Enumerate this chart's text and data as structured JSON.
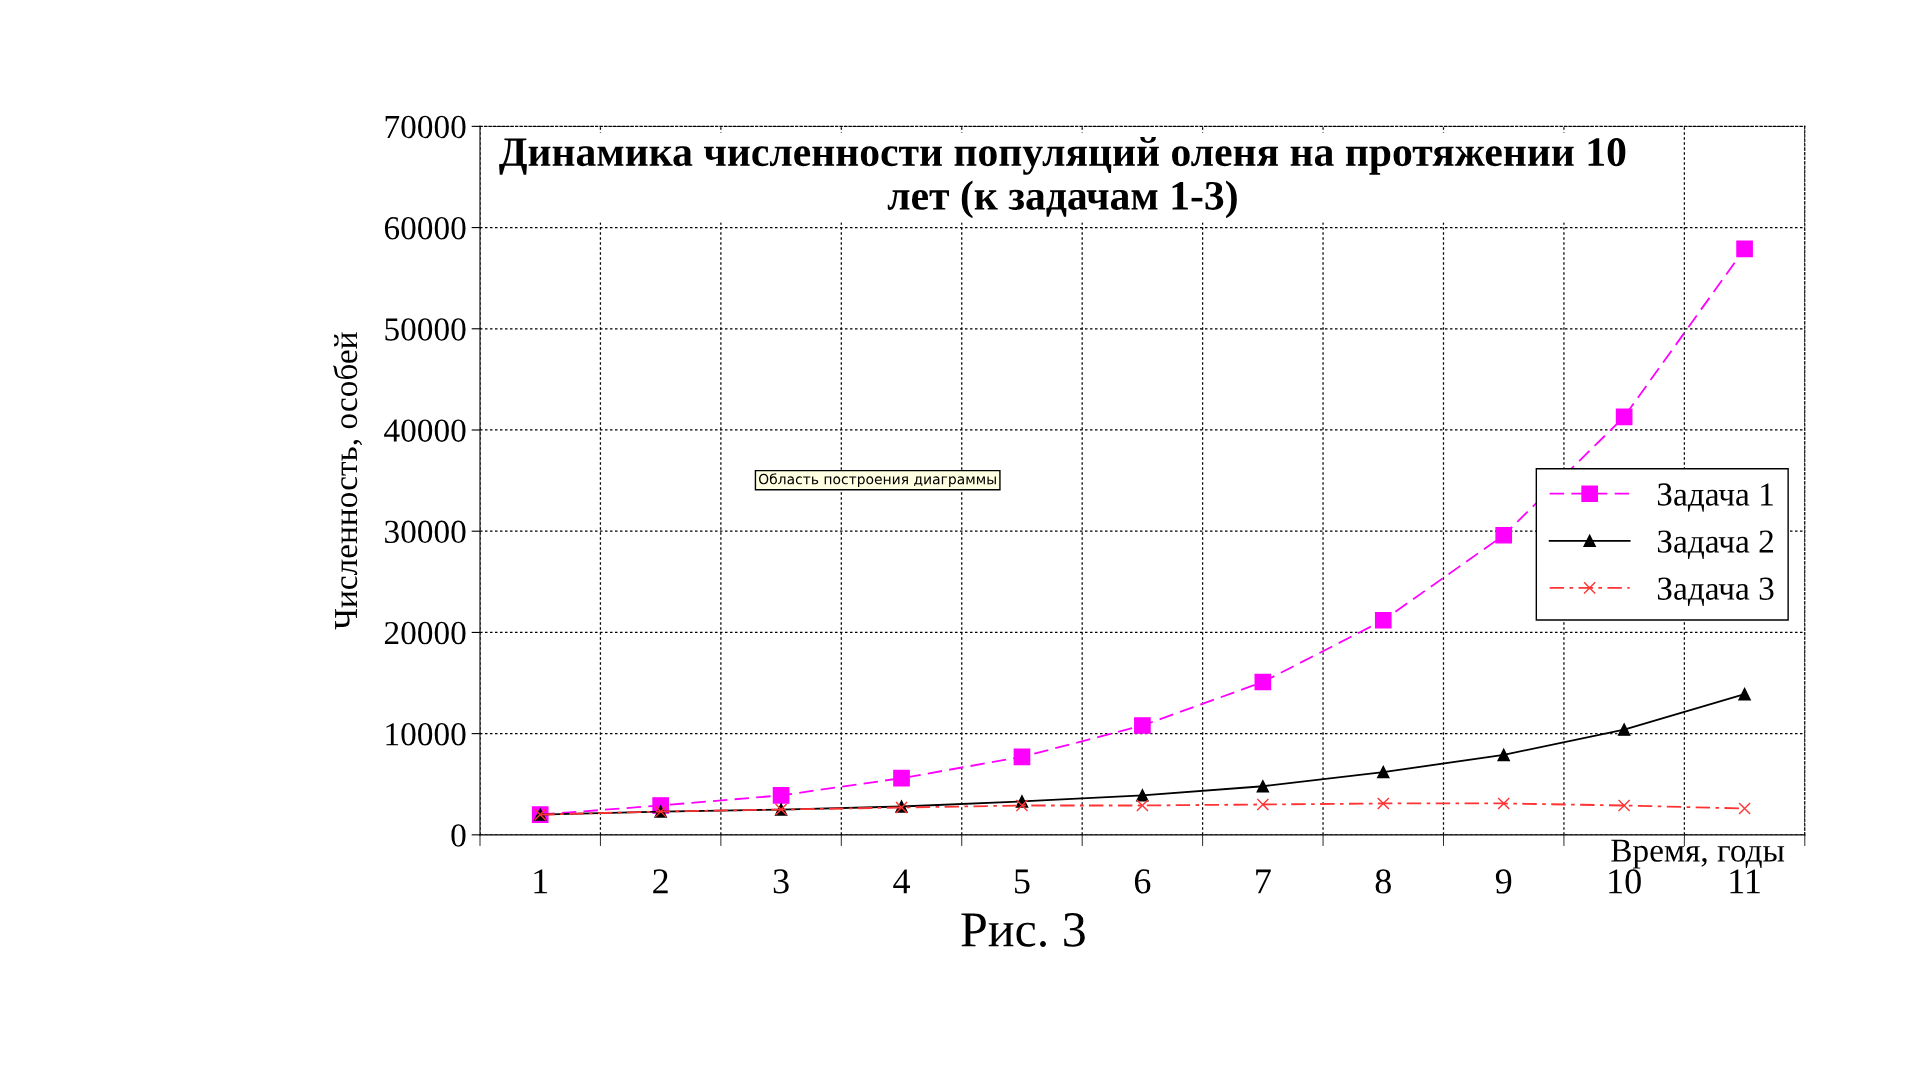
{
  "chart_data": {
    "type": "line",
    "title": "Динамика численности популяций оленя на протяжении 10 лет (к задачам 1-3)",
    "xlabel": "Время, годы",
    "ylabel": "Численность, особей",
    "categories": [
      "1",
      "2",
      "3",
      "4",
      "5",
      "6",
      "7",
      "8",
      "9",
      "10",
      "11"
    ],
    "series": [
      {
        "name": "Задача 1",
        "color": "#ff00ff",
        "marker": "square",
        "line_style": "dashed",
        "values": [
          2000,
          2900,
          3900,
          5600,
          7700,
          10800,
          15100,
          21200,
          29600,
          41300,
          57900
        ]
      },
      {
        "name": "Задача 2",
        "color": "#000000",
        "marker": "triangle",
        "line_style": "solid",
        "values": [
          2000,
          2300,
          2500,
          2800,
          3300,
          3900,
          4800,
          6200,
          7900,
          10400,
          13900
        ]
      },
      {
        "name": "Задача 3",
        "color": "#ff3333",
        "marker": "cross",
        "line_style": "dashdot",
        "values": [
          2000,
          2300,
          2500,
          2700,
          2900,
          2900,
          3000,
          3100,
          3100,
          2900,
          2600
        ]
      }
    ],
    "ylim": [
      0,
      70000
    ],
    "yticks": [
      0,
      10000,
      20000,
      30000,
      40000,
      50000,
      60000,
      70000
    ],
    "grid": true,
    "legend": "right",
    "annotations": [
      "Область построения диаграммы",
      "Рис. 3"
    ]
  }
}
